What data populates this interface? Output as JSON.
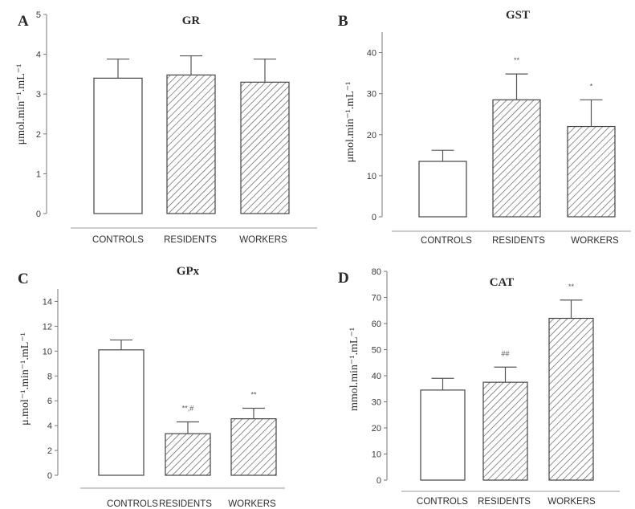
{
  "colors": {
    "ink": "#333333",
    "hatch": "#555555",
    "background": "#ffffff"
  },
  "chart_data": [
    {
      "type": "bar",
      "panel": "A",
      "title": "GR",
      "ylabel": "μmol.min⁻¹.mL⁻¹",
      "ylim": [
        0,
        5
      ],
      "yticks": [
        0,
        1,
        2,
        3,
        4,
        5
      ],
      "categories": [
        "CONTROLS",
        "RESIDENTS",
        "WORKERS"
      ],
      "values": [
        3.4,
        3.48,
        3.3
      ],
      "errors": [
        0.48,
        0.48,
        0.58
      ],
      "fills": [
        "open",
        "hatched",
        "hatched"
      ],
      "annotations": [
        "",
        "",
        ""
      ]
    },
    {
      "type": "bar",
      "panel": "B",
      "title": "GST",
      "ylabel": "μmol.min⁻¹.mL⁻¹",
      "ylim": [
        0,
        45
      ],
      "yticks": [
        0,
        10,
        20,
        30,
        40
      ],
      "categories": [
        "CONTROLS",
        "RESIDENTS",
        "WORKERS"
      ],
      "values": [
        13.5,
        28.5,
        22
      ],
      "errors": [
        2.7,
        6.3,
        6.5
      ],
      "fills": [
        "open",
        "hatched",
        "hatched"
      ],
      "annotations": [
        "",
        "**",
        "*"
      ]
    },
    {
      "type": "bar",
      "panel": "C",
      "title": "GPx",
      "ylabel": "μ.mol⁻¹.min⁻¹.mL⁻¹",
      "ylim": [
        0,
        15
      ],
      "yticks": [
        0,
        2,
        4,
        6,
        8,
        10,
        12,
        14
      ],
      "categories": [
        "CONTROLS",
        "RESIDENTS",
        "WORKERS"
      ],
      "values": [
        10.1,
        3.35,
        4.55
      ],
      "errors": [
        0.8,
        0.95,
        0.85
      ],
      "fills": [
        "open",
        "hatched",
        "hatched"
      ],
      "annotations": [
        "",
        "**,#",
        "**"
      ]
    },
    {
      "type": "bar",
      "panel": "D",
      "title": "CAT",
      "ylabel": "mmol.min⁻¹.mL⁻¹",
      "ylim": [
        0,
        80
      ],
      "yticks": [
        0,
        10,
        20,
        30,
        40,
        50,
        60,
        70,
        80
      ],
      "categories": [
        "CONTROLS",
        "RESIDENTS",
        "WORKERS"
      ],
      "values": [
        34.5,
        37.5,
        62
      ],
      "errors": [
        4.5,
        5.8,
        7
      ],
      "fills": [
        "open",
        "hatched",
        "hatched"
      ],
      "annotations": [
        "",
        "##",
        "**"
      ]
    }
  ]
}
